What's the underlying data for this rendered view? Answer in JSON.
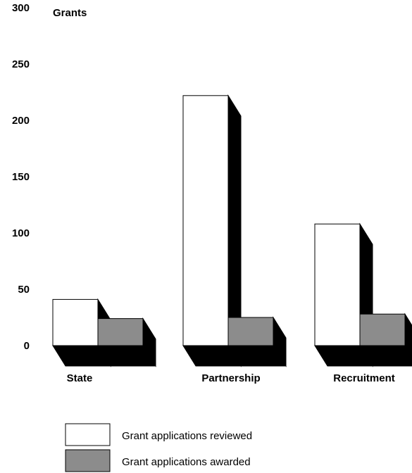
{
  "chart_data": {
    "type": "bar",
    "ylabel": "Grants",
    "ylim": [
      0,
      300
    ],
    "yticks": [
      "0",
      "50",
      "100",
      "150",
      "200",
      "250",
      "300"
    ],
    "categories": [
      "State",
      "Partnership",
      "Recruitment"
    ],
    "series": [
      {
        "name": "Grant applications reviewed",
        "values": [
          41,
          222,
          108
        ],
        "color": "#ffffff"
      },
      {
        "name": "Grant applications awarded",
        "values": [
          24,
          25,
          28
        ],
        "color": "#8c8c8c"
      }
    ],
    "shadow_color": "#000000",
    "legend_position": "bottom-left",
    "grid": false
  }
}
